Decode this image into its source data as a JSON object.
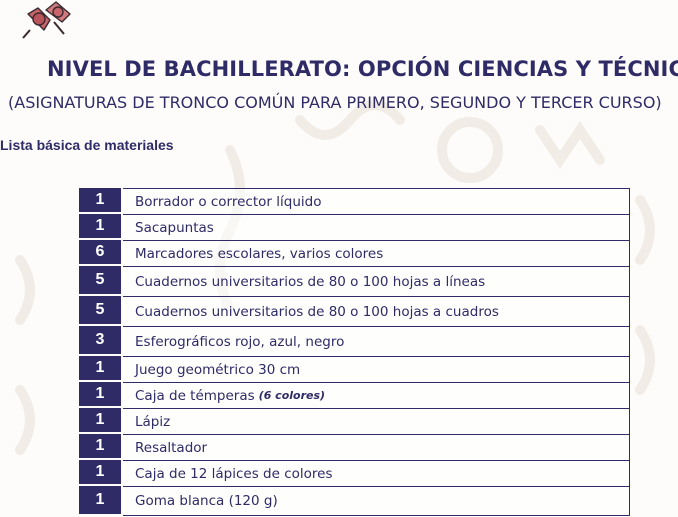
{
  "header": {
    "title": "NIVEL DE BACHILLERATO: OPCIÓN CIENCIAS Y TÉCNICO",
    "subtitle": "(ASIGNATURAS DE TRONCO COMÚN PARA PRIMERO, SEGUNDO Y TERCER CURSO)",
    "icon": "pushpins-icon"
  },
  "section": {
    "label": "Lista básica de materiales"
  },
  "colors": {
    "primary": "#2e2b66",
    "background": "#fdfcfa",
    "pin": "#c8656a"
  },
  "materials": [
    {
      "qty": "1",
      "item": "Borrador o corrector líquido"
    },
    {
      "qty": "1",
      "item": "Sacapuntas"
    },
    {
      "qty": "6",
      "item": "Marcadores escolares, varios colores"
    },
    {
      "qty": "5",
      "item": "Cuadernos universitarios de 80 o 100 hojas a líneas"
    },
    {
      "qty": "5",
      "item": "Cuadernos universitarios de 80 o 100 hojas a cuadros"
    },
    {
      "qty": "3",
      "item": "Esferográficos rojo, azul, negro"
    },
    {
      "qty": "1",
      "item": "Juego geométrico 30 cm"
    },
    {
      "qty": "1",
      "item": "Caja de témperas",
      "note": "(6 colores)"
    },
    {
      "qty": "1",
      "item": "Lápiz"
    },
    {
      "qty": "1",
      "item": "Resaltador"
    },
    {
      "qty": "1",
      "item": "Caja de 12 lápices de colores"
    },
    {
      "qty": "1",
      "item": "Goma blanca (120 g)"
    }
  ]
}
